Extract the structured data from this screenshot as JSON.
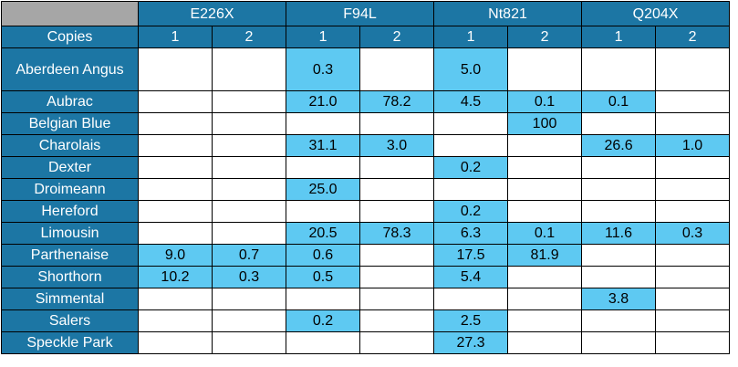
{
  "table": {
    "groups": [
      "E226X",
      "F94L",
      "Nt821",
      "Q204X"
    ],
    "copies_label": "Copies",
    "copies": [
      1,
      2,
      1,
      2,
      1,
      2,
      1,
      2
    ],
    "rows": [
      {
        "breed": "Aberdeen Angus",
        "cells": [
          null,
          null,
          "0.3",
          null,
          "5.0",
          null,
          null,
          null
        ]
      },
      {
        "breed": "Aubrac",
        "cells": [
          null,
          null,
          "21.0",
          "78.2",
          "4.5",
          "0.1",
          "0.1",
          null
        ]
      },
      {
        "breed": "Belgian Blue",
        "cells": [
          null,
          null,
          null,
          null,
          null,
          "100",
          null,
          null
        ]
      },
      {
        "breed": "Charolais",
        "cells": [
          null,
          null,
          "31.1",
          "3.0",
          null,
          null,
          "26.6",
          "1.0"
        ]
      },
      {
        "breed": "Dexter",
        "cells": [
          null,
          null,
          null,
          null,
          "0.2",
          null,
          null,
          null
        ]
      },
      {
        "breed": "Droimeann",
        "cells": [
          null,
          null,
          "25.0",
          null,
          null,
          null,
          null,
          null
        ]
      },
      {
        "breed": "Hereford",
        "cells": [
          null,
          null,
          null,
          null,
          "0.2",
          null,
          null,
          null
        ]
      },
      {
        "breed": "Limousin",
        "cells": [
          null,
          null,
          "20.5",
          "78.3",
          "6.3",
          "0.1",
          "11.6",
          "0.3"
        ]
      },
      {
        "breed": "Parthenaise",
        "cells": [
          "9.0",
          "0.7",
          "0.6",
          null,
          "17.5",
          "81.9",
          null,
          null
        ]
      },
      {
        "breed": "Shorthorn",
        "cells": [
          "10.2",
          "0.3",
          "0.5",
          null,
          "5.4",
          null,
          null,
          null
        ]
      },
      {
        "breed": "Simmental",
        "cells": [
          null,
          null,
          null,
          null,
          null,
          null,
          "3.8",
          null
        ]
      },
      {
        "breed": "Salers",
        "cells": [
          null,
          null,
          "0.2",
          null,
          "2.5",
          null,
          null,
          null
        ]
      },
      {
        "breed": "Speckle Park",
        "cells": [
          null,
          null,
          null,
          null,
          "27.3",
          null,
          null,
          null
        ]
      }
    ]
  }
}
